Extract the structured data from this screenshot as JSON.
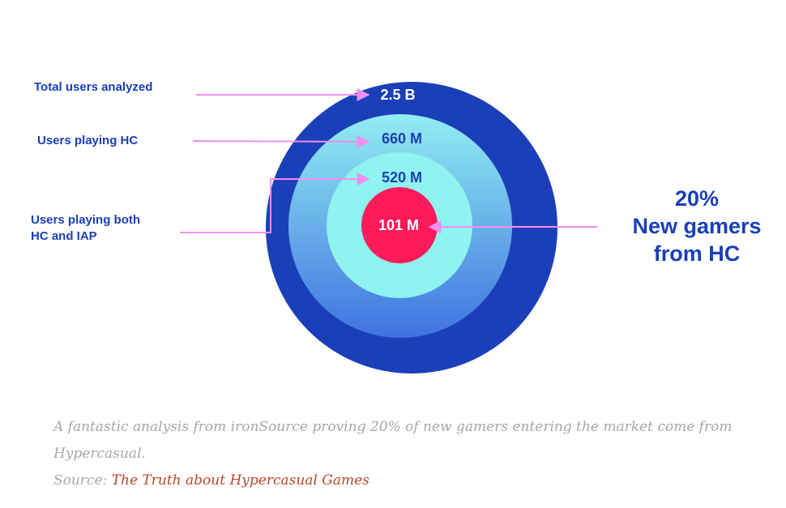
{
  "diagram": {
    "rings": [
      {
        "value": "2.5 B",
        "label": "Total users analyzed",
        "color": "#1a3fb8"
      },
      {
        "value": "660 M",
        "label": "Users playing HC",
        "color": "#3f86e6"
      },
      {
        "value": "520 M",
        "label": "Users playing both HC and IAP",
        "label_lines": [
          "Users playing both",
          "HC and IAP"
        ],
        "color": "#8ff3ef"
      },
      {
        "value": "101 M",
        "color": "#ff1a5a"
      }
    ],
    "callout": {
      "percent": "20%",
      "line1": "New gamers",
      "line2": "from HC"
    },
    "arrow_color": "#f28ef0"
  },
  "caption": {
    "text": "A fantastic analysis from ironSource proving 20% of new gamers entering the market come from Hypercasual.",
    "source_prefix": "Source: ",
    "source_link": "The Truth about Hypercasual Games"
  }
}
